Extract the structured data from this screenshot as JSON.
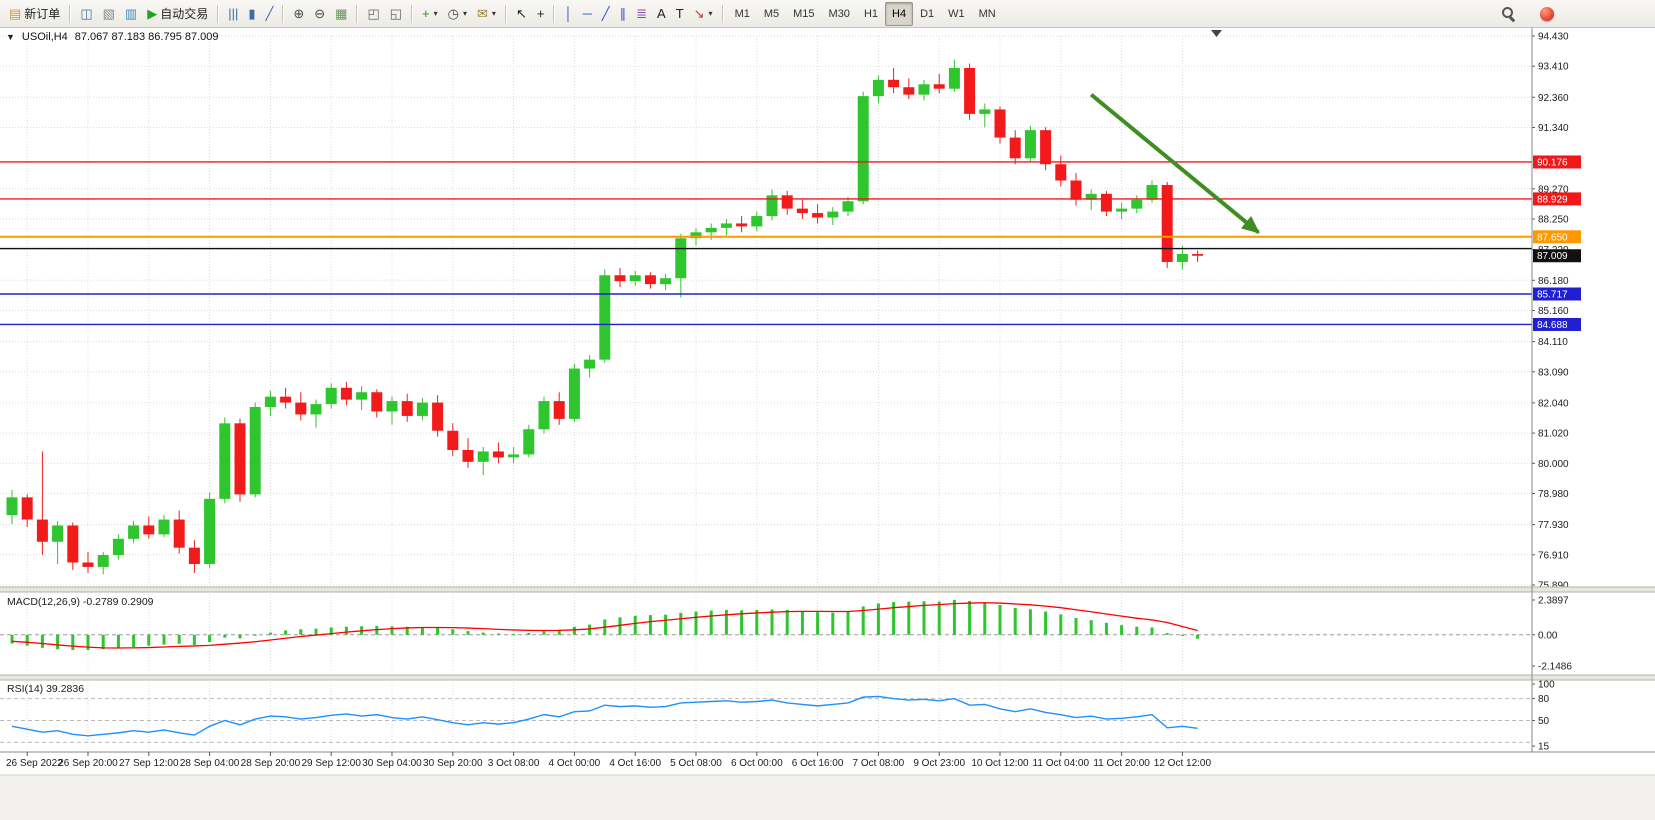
{
  "window": {
    "title_symbol": "USOil,H4",
    "title_ohlc": "87.067 87.183 86.795 87.009"
  },
  "icons": {
    "chart_menu": "▼",
    "caret": "▾"
  },
  "toolbar": {
    "items": [
      {
        "name": "new-order-button",
        "glyph": "▤",
        "color": "#c99a2e",
        "label": "新订单"
      },
      {
        "sep": true
      },
      {
        "name": "charts-window-button",
        "glyph": "◫",
        "color": "#4f729e"
      },
      {
        "name": "profiles-button",
        "glyph": "▧",
        "color": "#8a8a8a"
      },
      {
        "name": "data-window-button",
        "glyph": "▥",
        "color": "#3f8bc0"
      },
      {
        "name": "autotrade-button",
        "glyph": "▶",
        "color": "#21a321",
        "label": "自动交易"
      },
      {
        "sep": true
      },
      {
        "name": "bars-mode-button",
        "glyph": "|||",
        "color": "#3a6ea5"
      },
      {
        "name": "candles-mode-button",
        "glyph": "▮",
        "color": "#3a6ea5"
      },
      {
        "name": "line-mode-button",
        "glyph": "╱",
        "color": "#3a6ea5"
      },
      {
        "sep": true
      },
      {
        "name": "zoom-in-button",
        "glyph": "⊕",
        "color": "#4a4a4a"
      },
      {
        "name": "zoom-out-button",
        "glyph": "⊖",
        "color": "#4a4a4a"
      },
      {
        "name": "grid-button",
        "glyph": "▦",
        "color": "#6a8f5a"
      },
      {
        "sep": true
      },
      {
        "name": "tile-windows-button",
        "glyph": "◰",
        "color": "#666666"
      },
      {
        "name": "cascade-windows-button",
        "glyph": "◱",
        "color": "#666666"
      },
      {
        "sep": true
      },
      {
        "name": "indicators-button",
        "glyph": "+",
        "color": "#18a018",
        "caret": true
      },
      {
        "name": "periods-button",
        "glyph": "◷",
        "color": "#444444",
        "caret": true
      },
      {
        "name": "templates-button",
        "glyph": "✉",
        "color": "#9b7d33",
        "caret": true
      },
      {
        "sep": true
      },
      {
        "name": "cursor-tool-button",
        "glyph": "↖",
        "color": "#222222"
      },
      {
        "name": "crosshair-tool-button",
        "glyph": "+",
        "color": "#222222"
      },
      {
        "sep": true
      },
      {
        "name": "vline-tool-button",
        "glyph": "│",
        "color": "#2b57c4"
      },
      {
        "name": "hline-tool-button",
        "glyph": "─",
        "color": "#2b57c4"
      },
      {
        "name": "trendline-tool-button",
        "glyph": "╱",
        "color": "#2b57c4"
      },
      {
        "name": "channel-tool-button",
        "glyph": "∥",
        "color": "#2b57c4"
      },
      {
        "name": "fibo-tool-button",
        "glyph": "≣",
        "color": "#8a4a9e"
      },
      {
        "name": "text-tool-button",
        "glyph": "A",
        "color": "#222222"
      },
      {
        "name": "label-tool-button",
        "glyph": "T",
        "color": "#222222"
      },
      {
        "name": "arrows-tool-button",
        "glyph": "↘",
        "color": "#c03030",
        "caret": true
      },
      {
        "sep": true
      }
    ],
    "timeframes": [
      "M1",
      "M5",
      "M15",
      "M30",
      "H1",
      "H4",
      "D1",
      "W1",
      "MN"
    ],
    "active_timeframe": "H4"
  },
  "chart_data": {
    "type": "candlestick",
    "symbol": "USOil",
    "timeframe": "H4",
    "last_ohlc": {
      "open": 87.067,
      "high": 87.183,
      "low": 86.795,
      "close": 87.009
    },
    "up_color": "#2ec52e",
    "down_color": "#f21b1b",
    "price_range": {
      "min": 75.89,
      "max": 94.43
    },
    "price_ticks": [
      "94.430",
      "93.410",
      "92.360",
      "91.340",
      "89.270",
      "88.250",
      "87.220",
      "86.180",
      "85.160",
      "84.110",
      "83.090",
      "82.040",
      "81.020",
      "80.000",
      "78.980",
      "77.930",
      "76.910",
      "75.890"
    ],
    "time_labels": [
      "26 Sep 2022",
      "26 Sep 20:00",
      "27 Sep 12:00",
      "28 Sep 04:00",
      "28 Sep 20:00",
      "29 Sep 12:00",
      "30 Sep 04:00",
      "30 Sep 20:00",
      "3 Oct 08:00",
      "4 Oct 00:00",
      "4 Oct 16:00",
      "5 Oct 08:00",
      "6 Oct 00:00",
      "6 Oct 16:00",
      "7 Oct 08:00",
      "9 Oct 23:00",
      "10 Oct 12:00",
      "11 Oct 04:00",
      "11 Oct 20:00",
      "12 Oct 12:00"
    ],
    "label_start_index": 1,
    "label_step": 4,
    "candles": [
      [
        78.25,
        79.1,
        77.95,
        78.85
      ],
      [
        78.85,
        78.95,
        77.85,
        78.1
      ],
      [
        78.1,
        80.4,
        76.9,
        77.35
      ],
      [
        77.35,
        78.05,
        76.6,
        77.9
      ],
      [
        77.9,
        78.0,
        76.4,
        76.65
      ],
      [
        76.65,
        77.0,
        76.3,
        76.5
      ],
      [
        76.5,
        77.0,
        76.25,
        76.9
      ],
      [
        76.9,
        77.6,
        76.75,
        77.45
      ],
      [
        77.45,
        78.05,
        77.3,
        77.9
      ],
      [
        77.9,
        78.2,
        77.45,
        77.6
      ],
      [
        77.6,
        78.25,
        77.5,
        78.1
      ],
      [
        78.1,
        78.4,
        76.95,
        77.15
      ],
      [
        77.15,
        77.4,
        76.3,
        76.6
      ],
      [
        76.6,
        79.0,
        76.45,
        78.8
      ],
      [
        78.8,
        81.55,
        78.65,
        81.35
      ],
      [
        81.35,
        81.5,
        78.7,
        78.95
      ],
      [
        78.95,
        82.05,
        78.85,
        81.9
      ],
      [
        81.9,
        82.45,
        81.6,
        82.25
      ],
      [
        82.25,
        82.55,
        81.85,
        82.05
      ],
      [
        82.05,
        82.4,
        81.45,
        81.65
      ],
      [
        81.65,
        82.15,
        81.2,
        82.0
      ],
      [
        82.0,
        82.7,
        81.85,
        82.55
      ],
      [
        82.55,
        82.75,
        81.95,
        82.15
      ],
      [
        82.15,
        82.6,
        81.8,
        82.4
      ],
      [
        82.4,
        82.5,
        81.55,
        81.75
      ],
      [
        81.75,
        82.25,
        81.3,
        82.1
      ],
      [
        82.1,
        82.35,
        81.4,
        81.6
      ],
      [
        81.6,
        82.2,
        81.45,
        82.05
      ],
      [
        82.05,
        82.3,
        80.9,
        81.1
      ],
      [
        81.1,
        81.35,
        80.25,
        80.45
      ],
      [
        80.45,
        80.85,
        79.85,
        80.05
      ],
      [
        80.05,
        80.55,
        79.6,
        80.4
      ],
      [
        80.4,
        80.7,
        80.0,
        80.2
      ],
      [
        80.2,
        80.55,
        80.0,
        80.3
      ],
      [
        80.3,
        81.3,
        80.2,
        81.15
      ],
      [
        81.15,
        82.25,
        81.0,
        82.1
      ],
      [
        82.1,
        82.4,
        81.3,
        81.5
      ],
      [
        81.5,
        83.35,
        81.4,
        83.2
      ],
      [
        83.2,
        83.65,
        82.9,
        83.5
      ],
      [
        83.5,
        86.55,
        83.4,
        86.35
      ],
      [
        86.35,
        86.6,
        85.95,
        86.15
      ],
      [
        86.15,
        86.5,
        86.0,
        86.35
      ],
      [
        86.35,
        86.45,
        85.9,
        86.05
      ],
      [
        86.05,
        86.4,
        85.85,
        86.25
      ],
      [
        86.25,
        87.75,
        85.6,
        87.6
      ],
      [
        87.6,
        87.95,
        87.35,
        87.8
      ],
      [
        87.8,
        88.1,
        87.55,
        87.95
      ],
      [
        87.95,
        88.25,
        87.7,
        88.1
      ],
      [
        88.1,
        88.35,
        87.8,
        88.0
      ],
      [
        88.0,
        88.5,
        87.85,
        88.35
      ],
      [
        88.35,
        89.25,
        88.2,
        89.05
      ],
      [
        89.05,
        89.2,
        88.4,
        88.6
      ],
      [
        88.6,
        88.9,
        88.25,
        88.45
      ],
      [
        88.45,
        88.75,
        88.1,
        88.3
      ],
      [
        88.3,
        88.65,
        88.05,
        88.5
      ],
      [
        88.5,
        89.0,
        88.35,
        88.85
      ],
      [
        88.85,
        92.55,
        88.75,
        92.4
      ],
      [
        92.4,
        93.1,
        92.15,
        92.95
      ],
      [
        92.95,
        93.35,
        92.5,
        92.7
      ],
      [
        92.7,
        93.0,
        92.3,
        92.45
      ],
      [
        92.45,
        92.95,
        92.25,
        92.8
      ],
      [
        92.8,
        93.15,
        92.5,
        92.65
      ],
      [
        92.65,
        93.63,
        92.55,
        93.35
      ],
      [
        93.35,
        93.5,
        91.6,
        91.8
      ],
      [
        91.8,
        92.15,
        91.35,
        91.95
      ],
      [
        91.95,
        92.05,
        90.8,
        91.0
      ],
      [
        91.0,
        91.25,
        90.1,
        90.3
      ],
      [
        90.3,
        91.4,
        90.2,
        91.25
      ],
      [
        91.25,
        91.35,
        89.9,
        90.1
      ],
      [
        90.1,
        90.4,
        89.35,
        89.55
      ],
      [
        89.55,
        89.8,
        88.7,
        88.9
      ],
      [
        88.9,
        89.25,
        88.55,
        89.1
      ],
      [
        89.1,
        89.2,
        88.35,
        88.5
      ],
      [
        88.5,
        88.8,
        88.25,
        88.6
      ],
      [
        88.6,
        89.05,
        88.45,
        88.9
      ],
      [
        88.9,
        89.55,
        88.8,
        89.4
      ],
      [
        89.4,
        89.5,
        86.6,
        86.8
      ],
      [
        86.8,
        87.35,
        86.55,
        87.07
      ],
      [
        87.067,
        87.183,
        86.795,
        87.009
      ]
    ],
    "hlines": [
      {
        "price": 90.176,
        "label": "90.176",
        "color": "#f01818"
      },
      {
        "price": 88.929,
        "label": "88.929",
        "color": "#f01818"
      },
      {
        "price": 87.65,
        "label": "87.650",
        "color": "#ff9800",
        "width": 2
      },
      {
        "price": 87.25,
        "color": "#111111"
      },
      {
        "price": 85.717,
        "label": "85.717",
        "color": "#2020d0"
      },
      {
        "price": 84.688,
        "label": "84.688",
        "color": "#2020d0"
      }
    ],
    "bid_tag": {
      "price": 87.009,
      "label": "87.009",
      "color": "#111111"
    },
    "trend_arrow": {
      "from_bar": 71,
      "from_price": 92.45,
      "to_bar": 82,
      "to_price": 87.8,
      "color": "#3e8e22"
    },
    "macd": {
      "title": "MACD(12,26,9) -0.2789 0.2909",
      "max": 2.3897,
      "min": -2.1486,
      "axis_labels": [
        "2.3897",
        "0.00",
        "-2.1486"
      ],
      "hist_color": "#2ec52e",
      "signal_color": "#ff0000",
      "histogram": [
        -0.6,
        -0.75,
        -0.9,
        -1.0,
        -1.05,
        -1.05,
        -1.0,
        -0.92,
        -0.85,
        -0.75,
        -0.68,
        -0.62,
        -0.7,
        -0.5,
        -0.2,
        -0.25,
        -0.05,
        0.15,
        0.3,
        0.38,
        0.42,
        0.5,
        0.55,
        0.58,
        0.6,
        0.58,
        0.55,
        0.52,
        0.48,
        0.38,
        0.25,
        0.15,
        0.08,
        0.05,
        0.12,
        0.25,
        0.35,
        0.55,
        0.7,
        1.05,
        1.2,
        1.3,
        1.35,
        1.38,
        1.5,
        1.6,
        1.66,
        1.7,
        1.68,
        1.7,
        1.74,
        1.7,
        1.62,
        1.55,
        1.52,
        1.58,
        1.95,
        2.15,
        2.25,
        2.28,
        2.3,
        2.28,
        2.39,
        2.32,
        2.2,
        2.05,
        1.85,
        1.75,
        1.6,
        1.4,
        1.15,
        1.0,
        0.82,
        0.66,
        0.55,
        0.5,
        0.12,
        -0.08,
        -0.2789
      ],
      "signal": [
        -0.45,
        -0.52,
        -0.6,
        -0.7,
        -0.78,
        -0.85,
        -0.9,
        -0.91,
        -0.9,
        -0.88,
        -0.84,
        -0.8,
        -0.77,
        -0.73,
        -0.65,
        -0.57,
        -0.48,
        -0.36,
        -0.24,
        -0.12,
        -0.02,
        0.08,
        0.18,
        0.27,
        0.35,
        0.42,
        0.47,
        0.5,
        0.5,
        0.49,
        0.46,
        0.42,
        0.37,
        0.33,
        0.3,
        0.29,
        0.3,
        0.34,
        0.4,
        0.52,
        0.65,
        0.78,
        0.9,
        1.0,
        1.1,
        1.2,
        1.29,
        1.37,
        1.44,
        1.5,
        1.55,
        1.59,
        1.61,
        1.61,
        1.6,
        1.6,
        1.67,
        1.76,
        1.86,
        1.94,
        2.02,
        2.07,
        2.14,
        2.18,
        2.2,
        2.18,
        2.12,
        2.06,
        1.97,
        1.86,
        1.72,
        1.58,
        1.43,
        1.28,
        1.14,
        1.02,
        0.84,
        0.57,
        0.29
      ]
    },
    "rsi": {
      "title": "RSI(14) 39.2836",
      "min": 15,
      "max": 100,
      "levels": [
        80,
        50,
        20
      ],
      "axis_labels": [
        {
          "v": 100,
          "t": "100"
        },
        {
          "v": 80,
          "t": "80"
        },
        {
          "v": 50,
          "t": "50"
        },
        {
          "v": 15,
          "t": "15"
        }
      ],
      "color": "#1e90ff",
      "values": [
        42,
        38,
        34,
        36,
        31,
        29,
        31,
        33,
        36,
        34,
        37,
        33,
        30,
        42,
        50,
        44,
        52,
        56,
        55,
        52,
        54,
        57,
        59,
        56,
        58,
        54,
        52,
        55,
        51,
        47,
        44,
        47,
        45,
        47,
        52,
        58,
        55,
        62,
        63,
        71,
        69,
        70,
        68,
        69,
        74,
        75,
        76,
        77,
        75,
        76,
        78,
        74,
        72,
        70,
        72,
        74,
        82,
        83,
        80,
        78,
        79,
        77,
        80,
        71,
        72,
        66,
        62,
        66,
        61,
        58,
        54,
        56,
        52,
        53,
        55,
        58,
        40,
        42,
        39.28
      ]
    }
  }
}
